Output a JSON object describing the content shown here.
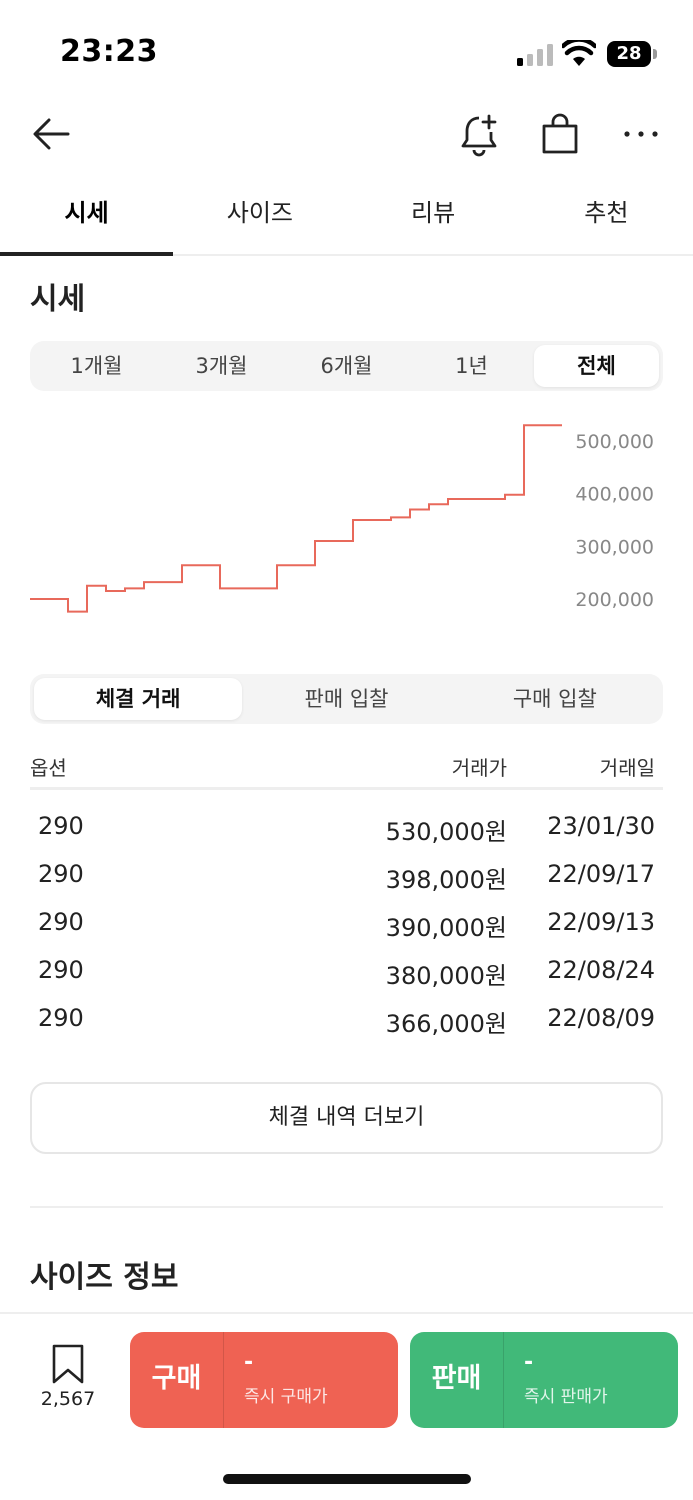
{
  "status": {
    "time": "23:23",
    "battery": "28"
  },
  "tabs": [
    {
      "label": "시세"
    },
    {
      "label": "사이즈"
    },
    {
      "label": "리뷰"
    },
    {
      "label": "추천"
    }
  ],
  "price_section": {
    "title": "시세",
    "periods": [
      "1개월",
      "3개월",
      "6개월",
      "1년",
      "전체"
    ],
    "selected_period": "전체"
  },
  "chart_data": {
    "type": "line",
    "y_ticks": [
      "500,000",
      "400,000",
      "300,000",
      "200,000"
    ],
    "ylim": [
      160000,
      540000
    ],
    "line_color": "#e8695b",
    "grid": false,
    "series": [
      {
        "values": [
          200000,
          200000,
          176000,
          225000,
          215000,
          220000,
          232000,
          232000,
          264000,
          264000,
          220000,
          220000,
          220000,
          264000,
          264000,
          310000,
          310000,
          350000,
          350000,
          355000,
          370000,
          380000,
          390000,
          390000,
          390000,
          398000,
          530000,
          530000,
          530000
        ]
      }
    ]
  },
  "trade_section": {
    "sub_tabs": [
      "체결 거래",
      "판매 입찰",
      "구매 입찰"
    ],
    "selected_sub_tab": "체결 거래",
    "columns": [
      "옵션",
      "거래가",
      "거래일"
    ],
    "rows": [
      {
        "option": "290",
        "price": "530,000원",
        "date": "23/01/30"
      },
      {
        "option": "290",
        "price": "398,000원",
        "date": "22/09/17"
      },
      {
        "option": "290",
        "price": "390,000원",
        "date": "22/09/13"
      },
      {
        "option": "290",
        "price": "380,000원",
        "date": "22/08/24"
      },
      {
        "option": "290",
        "price": "366,000원",
        "date": "22/08/09"
      }
    ],
    "more_label": "체결 내역 더보기"
  },
  "size_section": {
    "title": "사이즈 정보"
  },
  "bottom_bar": {
    "bookmark_count": "2,567",
    "buy": {
      "label": "구매",
      "price": "-",
      "sub": "즉시 구매가",
      "color": "#ef6253"
    },
    "sell": {
      "label": "판매",
      "price": "-",
      "sub": "즉시 판매가",
      "color": "#41b979"
    }
  }
}
